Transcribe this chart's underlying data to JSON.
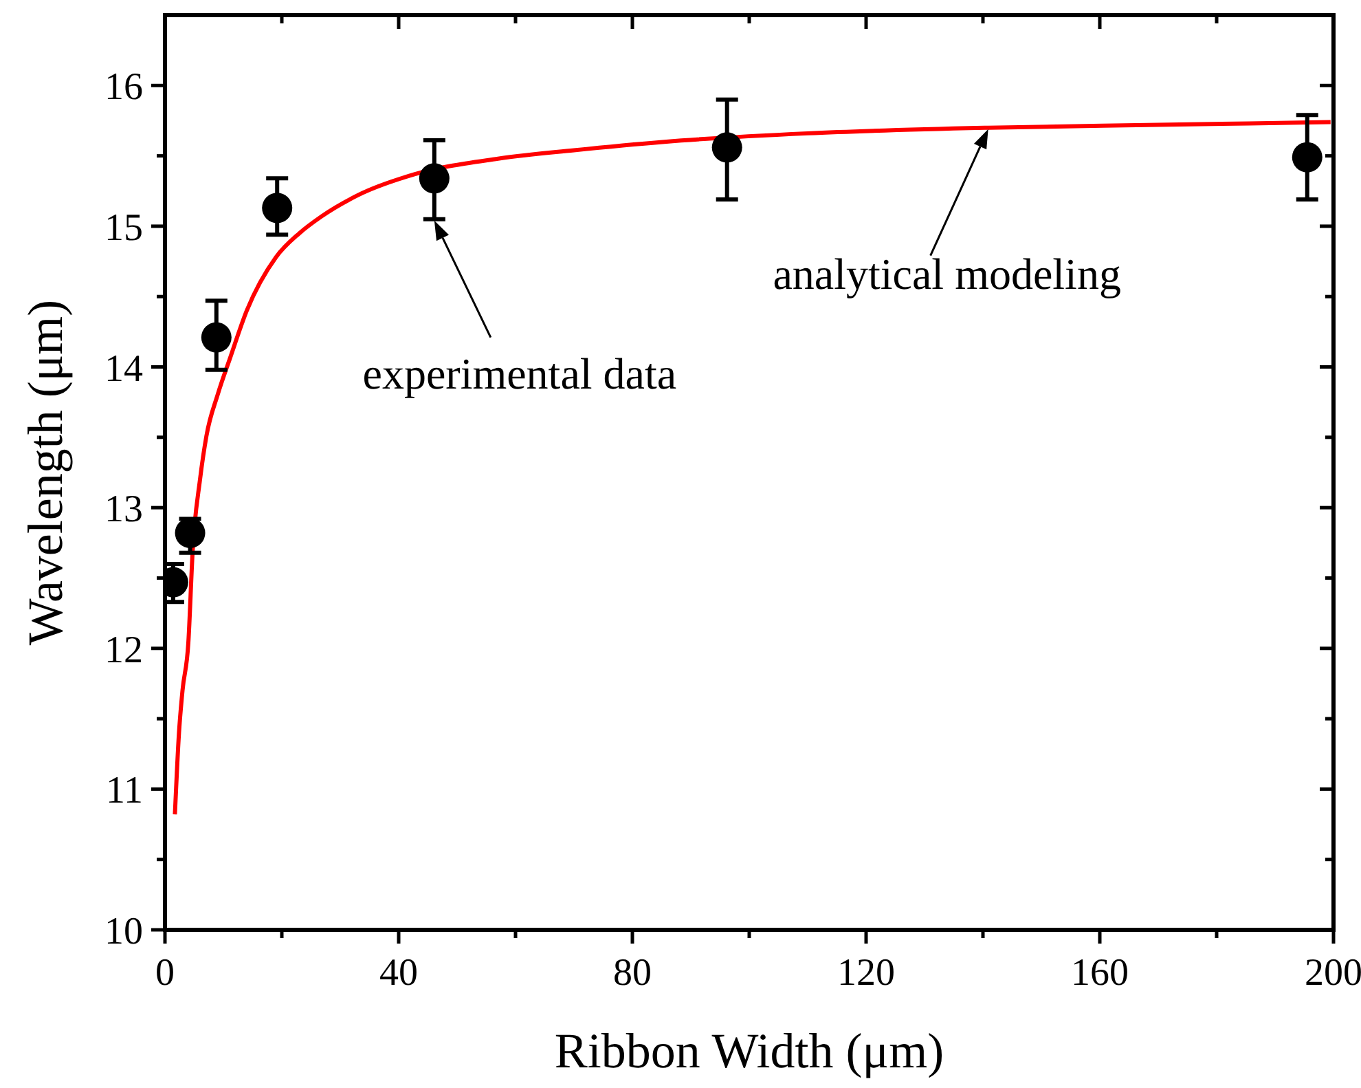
{
  "chart_data": {
    "type": "scatter",
    "xlabel": "Ribbon Width (μm)",
    "ylabel": "Wavelength (μm)",
    "xlim": [
      0,
      200
    ],
    "ylim": [
      10,
      16.5
    ],
    "xticks": [
      0,
      {
        "value": 20,
        "label": null
      },
      40,
      {
        "value": 60,
        "label": null
      },
      80,
      {
        "value": 100,
        "label": null
      },
      120,
      {
        "value": 140,
        "label": null
      },
      160,
      {
        "value": 180,
        "label": null
      },
      200
    ],
    "yticks": [
      10,
      {
        "value": 10.5,
        "label": null
      },
      11,
      {
        "value": 11.5,
        "label": null
      },
      12,
      {
        "value": 12.5,
        "label": null
      },
      13,
      {
        "value": 13.5,
        "label": null
      },
      14,
      {
        "value": 14.5,
        "label": null
      },
      15,
      {
        "value": 15.5,
        "label": null
      },
      16
    ],
    "grid": false,
    "series": [
      {
        "type": "line",
        "color": "#ff0000",
        "marker": "none",
        "line_style": "solid",
        "x": [
          1.7,
          2.4,
          3,
          4.0,
          4.75,
          6,
          7.1,
          9,
          11.2,
          14,
          19,
          23,
          26.8,
          33,
          42.8,
          57,
          70,
          85.5,
          110,
          140.9,
          170,
          199.5
        ],
        "values": [
          10.82,
          11.4,
          11.7,
          12.04,
          12.7,
          13.2,
          13.51,
          13.8,
          14.07,
          14.4,
          14.78,
          14.95,
          15.07,
          15.22,
          15.37,
          15.48,
          15.54,
          15.6,
          15.66,
          15.7,
          15.72,
          15.74
        ]
      },
      {
        "color": "#000000",
        "marker": "circle",
        "x": [
          1.4,
          4.3,
          8.8,
          19.2,
          46.1,
          96.2,
          195.5
        ],
        "values": [
          12.47,
          12.82,
          14.21,
          15.13,
          15.34,
          15.56,
          15.49
        ],
        "errors": [
          [
            12.33,
            12.6
          ],
          [
            12.68,
            12.92
          ],
          [
            13.98,
            14.47
          ],
          [
            14.94,
            15.34
          ],
          [
            15.05,
            15.61
          ],
          [
            15.19,
            15.9
          ],
          [
            15.19,
            15.79
          ]
        ]
      }
    ],
    "annotations": [
      {
        "text": "experimental data",
        "x": 46.1,
        "y": 15.05
      },
      {
        "text": "analytical modeling",
        "x": 140.9,
        "y": 15.7
      }
    ]
  }
}
